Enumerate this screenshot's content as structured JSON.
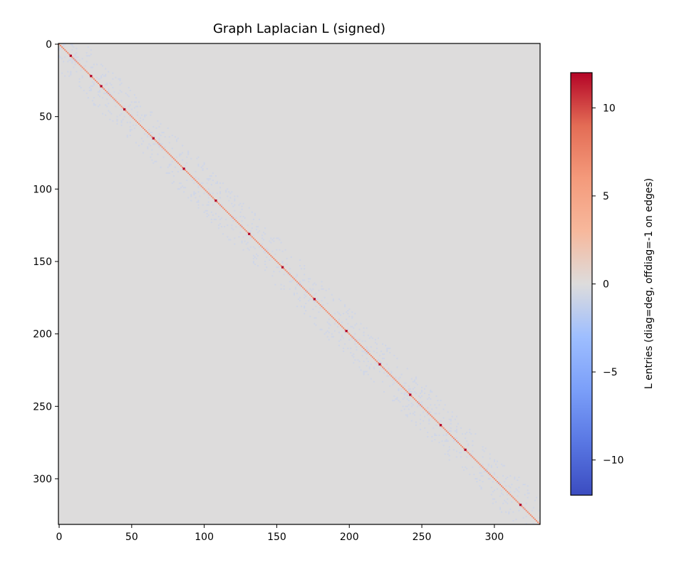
{
  "chart_data": {
    "type": "heatmap",
    "title": "Graph Laplacian L (signed)",
    "xlabel": "",
    "ylabel": "",
    "n": 332,
    "x_ticks": [
      0,
      50,
      100,
      150,
      200,
      250,
      300
    ],
    "y_ticks": [
      0,
      50,
      100,
      150,
      200,
      250,
      300
    ],
    "x_tick_labels": [
      "0",
      "50",
      "100",
      "150",
      "200",
      "250",
      "300"
    ],
    "y_tick_labels": [
      "0",
      "50",
      "100",
      "150",
      "200",
      "250",
      "300"
    ],
    "colorbar": {
      "label": "L entries (diag=deg, offdiag=-1 on edges)",
      "range": [
        -12,
        12
      ],
      "ticks": [
        10,
        5,
        0,
        -5,
        -10
      ],
      "tick_labels": [
        "10",
        "5",
        "0",
        "−5",
        "−10"
      ],
      "colormap": "coolwarm"
    },
    "cell_values": {
      "background_value": 0,
      "diagonal_typical_value": 6,
      "diagonal_peak_value": 12,
      "diagonal_peaks_at": [
        8,
        22,
        29,
        45,
        65,
        86,
        108,
        131,
        154,
        176,
        198,
        221,
        242,
        263,
        280,
        318
      ],
      "offdiagonal_edge_value": -1
    },
    "grid": false,
    "colors": {
      "background_cell": "#dddcdc",
      "diagonal_cell": "#f08b6e",
      "diagonal_peak_cell": "#b40426",
      "edge_cell": "#cfd6e8",
      "axes_frame": "#000000"
    }
  }
}
